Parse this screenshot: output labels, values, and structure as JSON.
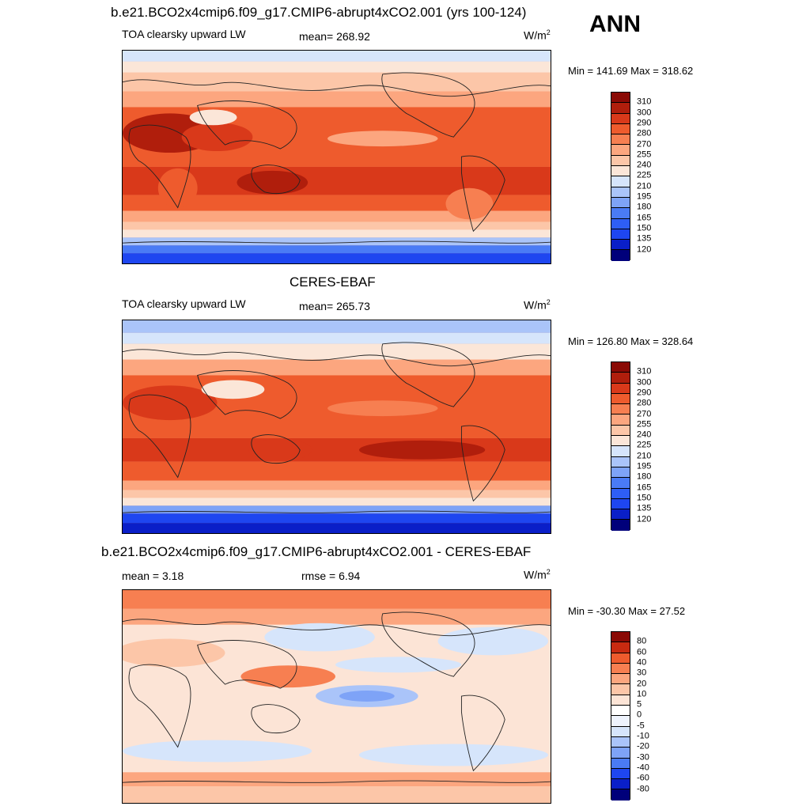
{
  "season": "ANN",
  "panels": [
    {
      "title": "b.e21.BCO2x4cmip6.f09_g17.CMIP6-abrupt4xCO2.001 (yrs 100-124)",
      "variable": "TOA clearsky upward LW",
      "stat_left": "",
      "stat_center": "mean= 268.92",
      "units": "W/m",
      "units_sup": "2",
      "minmax": "Min = 141.69 Max = 318.62",
      "colorbar_ticks": [
        "310",
        "300",
        "290",
        "280",
        "270",
        "255",
        "240",
        "225",
        "210",
        "195",
        "180",
        "165",
        "150",
        "135",
        "120"
      ]
    },
    {
      "title": "CERES-EBAF",
      "variable": "TOA clearsky upward LW",
      "stat_left": "",
      "stat_center": "mean= 265.73",
      "units": "W/m",
      "units_sup": "2",
      "minmax": "Min = 126.80 Max = 328.64",
      "colorbar_ticks": [
        "310",
        "300",
        "290",
        "280",
        "270",
        "255",
        "240",
        "225",
        "210",
        "195",
        "180",
        "165",
        "150",
        "135",
        "120"
      ]
    },
    {
      "title": "b.e21.BCO2x4cmip6.f09_g17.CMIP6-abrupt4xCO2.001 - CERES-EBAF",
      "variable": "",
      "stat_left": "mean =   3.18",
      "stat_center": "rmse =   6.94",
      "units": "W/m",
      "units_sup": "2",
      "minmax": "Min = -30.30 Max =  27.52",
      "colorbar_ticks": [
        "80",
        "60",
        "40",
        "30",
        "20",
        "10",
        "5",
        "0",
        "-5",
        "-10",
        "-20",
        "-30",
        "-40",
        "-60",
        "-80"
      ]
    }
  ],
  "colors": {
    "absolute_scale": [
      "#00007a",
      "#0a1fc8",
      "#1e46f0",
      "#2e5ef5",
      "#4a7bf5",
      "#7ea3f7",
      "#aac4f9",
      "#d6e5fb",
      "#fbe6d8",
      "#fcc6a8",
      "#fca67f",
      "#f77f51",
      "#ee5b2d",
      "#d9391a",
      "#b01e0c",
      "#8a0a05"
    ],
    "difference_scale": [
      "#00007a",
      "#0a1fc8",
      "#1e46f0",
      "#4a7bf5",
      "#7ea3f7",
      "#aac4f9",
      "#d6e5fb",
      "#eef3fd",
      "#ffffff",
      "#fce4d6",
      "#fcc6a8",
      "#fca67f",
      "#f77f51",
      "#ee5b2d",
      "#c82a10",
      "#8a0a05"
    ]
  }
}
